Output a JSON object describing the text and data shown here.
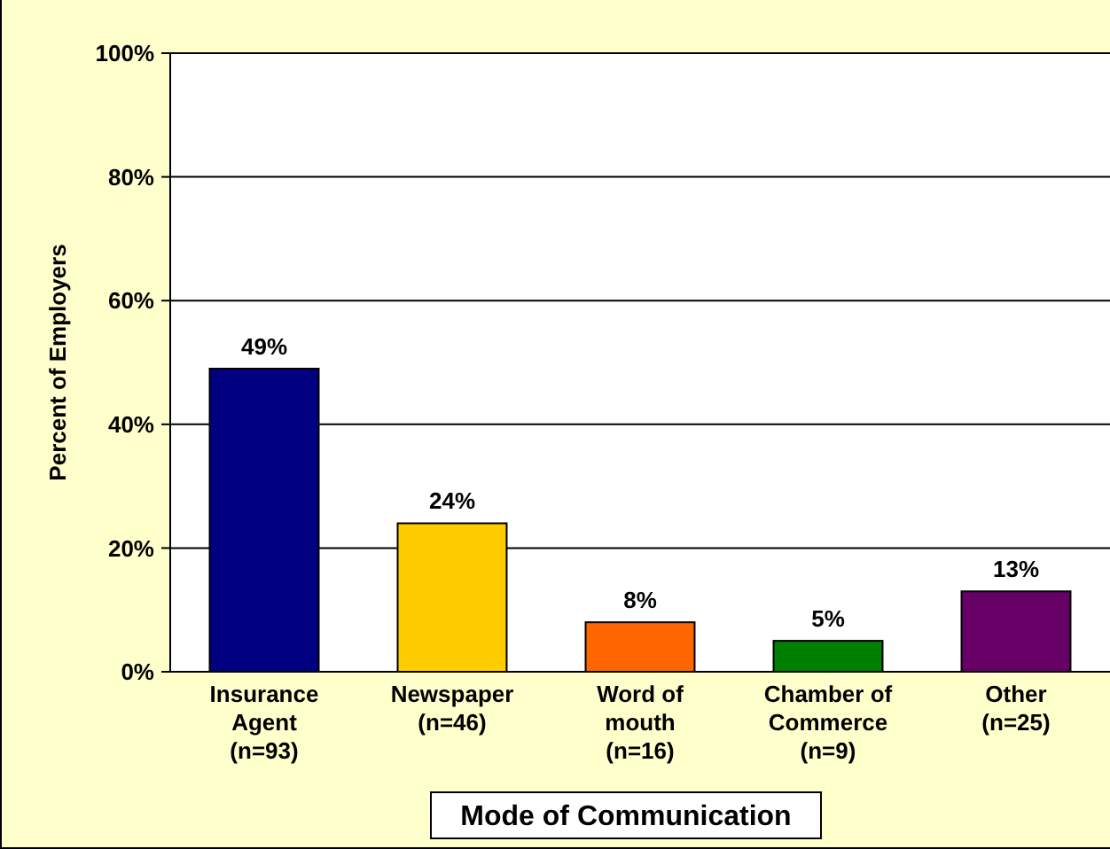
{
  "chart_data": {
    "type": "bar",
    "xlabel": "Mode of Communication",
    "ylabel": "Percent of Employers",
    "categories": [
      "Insurance\nAgent\n(n=93)",
      "Newspaper\n(n=46)",
      "Word of\nmouth\n(n=16)",
      "Chamber of\nCommerce\n(n=9)",
      "Other\n(n=25)"
    ],
    "values": [
      49,
      24,
      8,
      5,
      13
    ],
    "colors": [
      "#000080",
      "#ffcc00",
      "#ff6600",
      "#008000",
      "#660066"
    ],
    "value_labels": [
      "49%",
      "24%",
      "8%",
      "5%",
      "13%"
    ],
    "ylim": [
      0,
      100
    ],
    "yticks": [
      {
        "value": 0,
        "label": "0%"
      },
      {
        "value": 20,
        "label": "20%"
      },
      {
        "value": 40,
        "label": "40%"
      },
      {
        "value": 60,
        "label": "60%"
      },
      {
        "value": 80,
        "label": "80%"
      },
      {
        "value": 100,
        "label": "100%"
      }
    ],
    "grid": "y"
  }
}
